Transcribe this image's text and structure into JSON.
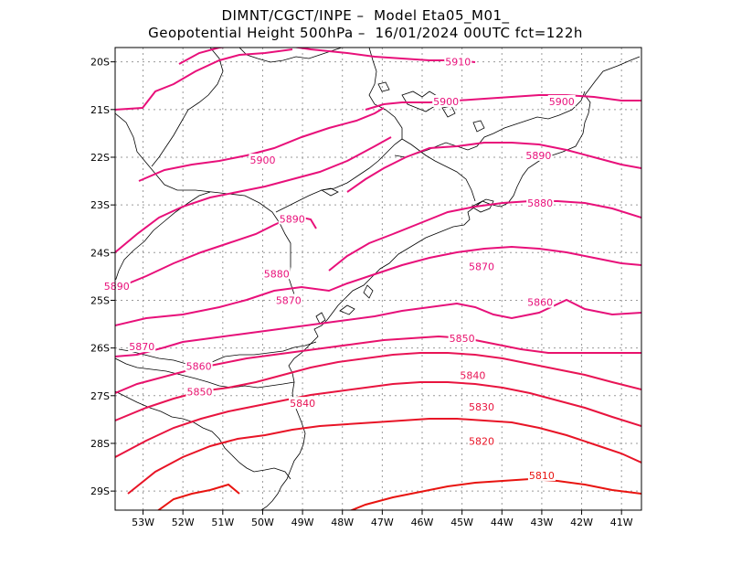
{
  "header": {
    "line1": "DIMNT/CGCT/INPE –  Model Eta05_M01_",
    "line2": "Geopotential Height 500hPa –  16/01/2024 00UTC fct=122h"
  },
  "map": {
    "lon_range": [
      -53.7,
      -40.5
    ],
    "lat_range": [
      -29.4,
      -19.7
    ],
    "lon_ticks": [
      {
        "value": -53,
        "label": "53W"
      },
      {
        "value": -52,
        "label": "52W"
      },
      {
        "value": -51,
        "label": "51W"
      },
      {
        "value": -50,
        "label": "50W"
      },
      {
        "value": -49,
        "label": "49W"
      },
      {
        "value": -48,
        "label": "48W"
      },
      {
        "value": -47,
        "label": "47W"
      },
      {
        "value": -46,
        "label": "46W"
      },
      {
        "value": -45,
        "label": "45W"
      },
      {
        "value": -44,
        "label": "44W"
      },
      {
        "value": -43,
        "label": "43W"
      },
      {
        "value": -42,
        "label": "42W"
      },
      {
        "value": -41,
        "label": "41W"
      }
    ],
    "lat_ticks": [
      {
        "value": -20,
        "label": "20S"
      },
      {
        "value": -21,
        "label": "21S"
      },
      {
        "value": -22,
        "label": "22S"
      },
      {
        "value": -23,
        "label": "23S"
      },
      {
        "value": -24,
        "label": "24S"
      },
      {
        "value": -25,
        "label": "25S"
      },
      {
        "value": -26,
        "label": "26S"
      },
      {
        "value": -27,
        "label": "27S"
      },
      {
        "value": -28,
        "label": "28S"
      },
      {
        "value": -29,
        "label": "29S"
      }
    ],
    "grid": "dotted",
    "colors": {
      "coast": "#000000",
      "grid": "#9a9a9a",
      "frame": "#000000"
    },
    "contour_labels": [
      {
        "text": "5910",
        "lon": -45.1,
        "lat": -20.0,
        "color": "#e8107a"
      },
      {
        "text": "5900",
        "lon": -45.4,
        "lat": -20.83,
        "color": "#e8107a"
      },
      {
        "text": "5900",
        "lon": -42.5,
        "lat": -20.83,
        "color": "#e8107a"
      },
      {
        "text": "5900",
        "lon": -50.0,
        "lat": -22.06,
        "color": "#e8107a"
      },
      {
        "text": "5890",
        "lon": -43.08,
        "lat": -21.96,
        "color": "#e8107a"
      },
      {
        "text": "5890",
        "lon": -49.26,
        "lat": -23.29,
        "color": "#e8107a"
      },
      {
        "text": "5890",
        "lon": -53.66,
        "lat": -24.7,
        "color": "#e8107a"
      },
      {
        "text": "5880",
        "lon": -43.04,
        "lat": -22.96,
        "color": "#e8107a"
      },
      {
        "text": "5880",
        "lon": -49.65,
        "lat": -24.44,
        "color": "#e8107a"
      },
      {
        "text": "5870",
        "lon": -44.51,
        "lat": -24.29,
        "color": "#e8107a"
      },
      {
        "text": "5870",
        "lon": -49.35,
        "lat": -25.0,
        "color": "#e8107a"
      },
      {
        "text": "5870",
        "lon": -53.03,
        "lat": -25.97,
        "color": "#e8107a"
      },
      {
        "text": "5860",
        "lon": -43.04,
        "lat": -25.04,
        "color": "#e6117a"
      },
      {
        "text": "5860",
        "lon": -51.6,
        "lat": -26.38,
        "color": "#e8127a"
      },
      {
        "text": "5850",
        "lon": -45.0,
        "lat": -25.8,
        "color": "#e8126c"
      },
      {
        "text": "5850",
        "lon": -51.58,
        "lat": -26.92,
        "color": "#e8126c"
      },
      {
        "text": "5840",
        "lon": -44.73,
        "lat": -26.57,
        "color": "#e81455"
      },
      {
        "text": "5840",
        "lon": -49.0,
        "lat": -27.16,
        "color": "#e81455"
      },
      {
        "text": "5830",
        "lon": -44.51,
        "lat": -27.23,
        "color": "#e8143e"
      },
      {
        "text": "5820",
        "lon": -44.51,
        "lat": -27.95,
        "color": "#e81426"
      },
      {
        "text": "5810",
        "lon": -43.0,
        "lat": -28.67,
        "color": "#e81410"
      }
    ]
  }
}
